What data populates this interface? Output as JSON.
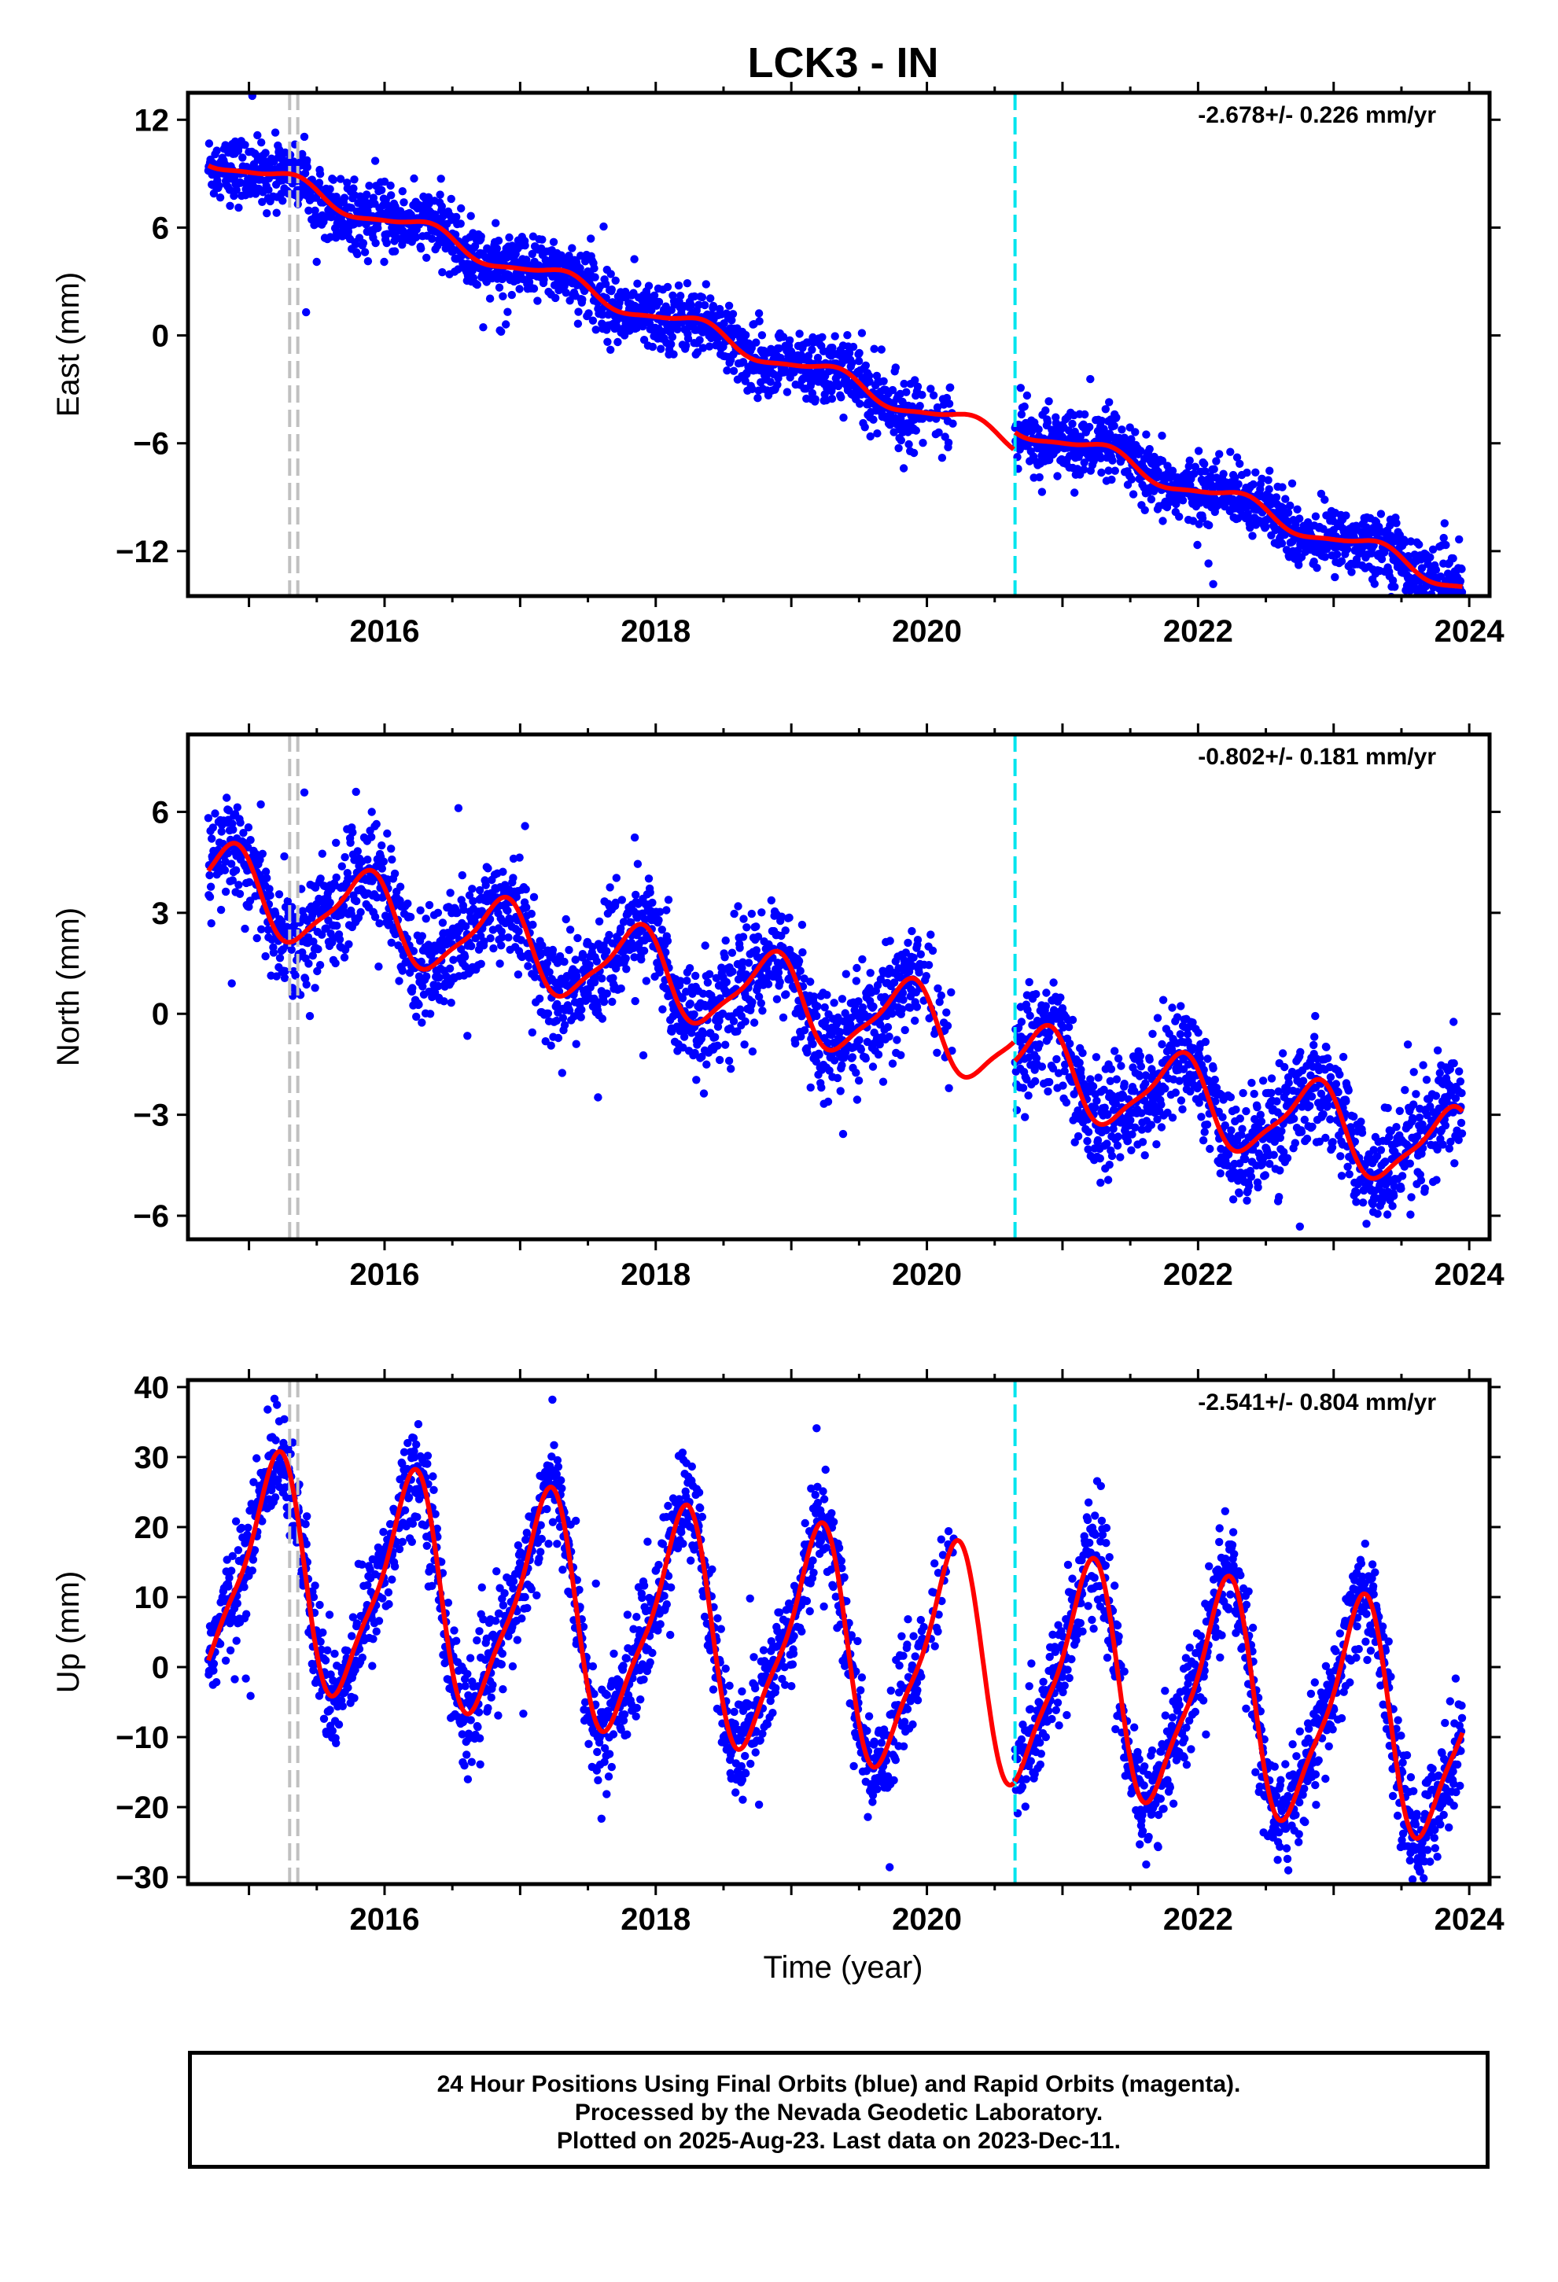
{
  "page": {
    "title": "LCK3 - IN",
    "xlabel": "Time (year)"
  },
  "footer": {
    "line1": "24 Hour Positions Using Final Orbits (blue) and Rapid Orbits (magenta).",
    "line2": "Processed by the Nevada Geodetic Laboratory.",
    "line3": "Plotted on 2025-Aug-23. Last data on 2023-Dec-11."
  },
  "colors": {
    "points": "#0000ff",
    "model": "#ff0000",
    "equipment_change": "#c0c0c0",
    "event_line": "#00e5ee"
  },
  "chart_data": [
    {
      "type": "scatter",
      "name": "East",
      "ylabel": "East (mm)",
      "rate": "-2.678+/- 0.226 mm/yr",
      "xlim": [
        2014.55,
        2024.15
      ],
      "ylim": [
        -14.5,
        13.5
      ],
      "yticks": [
        12,
        6,
        0,
        -6,
        -12
      ],
      "xticks": [
        2016,
        2018,
        2020,
        2022,
        2024
      ],
      "vlines_gray": [
        2015.3,
        2015.36
      ],
      "vline_cyan": 2020.65,
      "data_start": 2014.7,
      "data_end": 2023.95,
      "gap": [
        2020.2,
        2020.65
      ],
      "model": {
        "intercept_at_2015": 9.2,
        "slope": -2.678,
        "annual_amp": 0.55,
        "annual_phase": 0.3,
        "offset_after_event": 1.0,
        "noise": 0.9
      }
    },
    {
      "type": "scatter",
      "name": "North",
      "ylabel": "North (mm)",
      "rate": "-0.802+/- 0.181 mm/yr",
      "xlim": [
        2014.55,
        2024.15
      ],
      "ylim": [
        -6.7,
        8.3
      ],
      "yticks": [
        6,
        3,
        0,
        -3,
        -6
      ],
      "xticks": [
        2016,
        2018,
        2020,
        2022,
        2024
      ],
      "vlines_gray": [
        2015.3,
        2015.36
      ],
      "vline_cyan": 2020.65,
      "data_start": 2014.7,
      "data_end": 2023.95,
      "gap": [
        2020.2,
        2020.65
      ],
      "model": {
        "intercept_at_2015": 3.6,
        "slope": -0.802,
        "annual_amp": 1.2,
        "annual_phase": 0.85,
        "offset_after_event": -0.6,
        "noise": 0.8
      }
    },
    {
      "type": "scatter",
      "name": "Up",
      "ylabel": "Up (mm)",
      "rate": "-2.541+/- 0.804 mm/yr",
      "xlim": [
        2014.55,
        2024.15
      ],
      "ylim": [
        -31,
        41
      ],
      "yticks": [
        40,
        30,
        20,
        10,
        0,
        -10,
        -20,
        -30
      ],
      "xticks": [
        2016,
        2018,
        2020,
        2022,
        2024
      ],
      "vlines_gray": [
        2015.3,
        2015.36
      ],
      "vline_cyan": 2020.65,
      "data_start": 2014.7,
      "data_end": 2023.95,
      "gap": [
        2020.2,
        2020.65
      ],
      "model": {
        "intercept_at_2015": 13.5,
        "slope": -2.541,
        "annual_amp": 15.5,
        "annual_phase": 0.18,
        "offset_after_event": 0,
        "noise": 3.8
      }
    }
  ]
}
